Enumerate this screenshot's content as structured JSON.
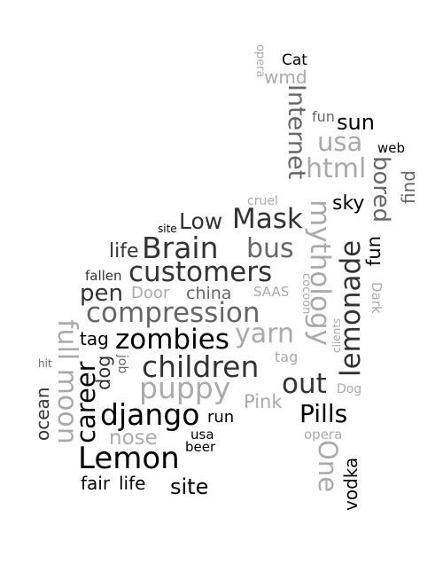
{
  "colors": {
    "background": "#ffffff",
    "black": "#000000",
    "dark": "#333333",
    "mid": "#666666",
    "light": "#aaaaaa"
  },
  "words": [
    {
      "text": "opera",
      "color": "#aaaaaa"
    },
    {
      "text": "Cat",
      "color": "#000000"
    },
    {
      "text": "wmd",
      "color": "#aaaaaa"
    },
    {
      "text": "Internet",
      "color": "#666666"
    },
    {
      "text": "fun",
      "color": "#666666"
    },
    {
      "text": "sun",
      "color": "#000000"
    },
    {
      "text": "usa",
      "color": "#aaaaaa"
    },
    {
      "text": "web",
      "color": "#000000"
    },
    {
      "text": "html",
      "color": "#aaaaaa"
    },
    {
      "text": "bored",
      "color": "#666666"
    },
    {
      "text": "find",
      "color": "#666666"
    },
    {
      "text": "cruel",
      "color": "#aaaaaa"
    },
    {
      "text": "sky",
      "color": "#000000"
    },
    {
      "text": "mythology",
      "color": "#aaaaaa"
    },
    {
      "text": "site",
      "color": "#000000"
    },
    {
      "text": "Low",
      "color": "#333333"
    },
    {
      "text": "Mask",
      "color": "#333333"
    },
    {
      "text": "lemonade",
      "color": "#333333"
    },
    {
      "text": "fun",
      "color": "#000000"
    },
    {
      "text": "life",
      "color": "#333333"
    },
    {
      "text": "Brain",
      "color": "#333333"
    },
    {
      "text": "bus",
      "color": "#666666"
    },
    {
      "text": "fallen",
      "color": "#333333"
    },
    {
      "text": "customers",
      "color": "#333333"
    },
    {
      "text": "Dark",
      "color": "#aaaaaa"
    },
    {
      "text": "pen",
      "color": "#333333"
    },
    {
      "text": "Door",
      "color": "#aaaaaa"
    },
    {
      "text": "china",
      "color": "#666666"
    },
    {
      "text": "SAAS",
      "color": "#aaaaaa"
    },
    {
      "text": "cocoon",
      "color": "#aaaaaa"
    },
    {
      "text": "compression",
      "color": "#666666"
    },
    {
      "text": "full moon",
      "color": "#aaaaaa"
    },
    {
      "text": "clients",
      "color": "#aaaaaa"
    },
    {
      "text": "tag",
      "color": "#000000"
    },
    {
      "text": "zombies",
      "color": "#000000"
    },
    {
      "text": "yarn",
      "color": "#aaaaaa"
    },
    {
      "text": "hit",
      "color": "#666666"
    },
    {
      "text": "ocean",
      "color": "#333333"
    },
    {
      "text": "job",
      "color": "#666666"
    },
    {
      "text": "dog",
      "color": "#333333"
    },
    {
      "text": "career",
      "color": "#000000"
    },
    {
      "text": "children",
      "color": "#333333"
    },
    {
      "text": "tag",
      "color": "#aaaaaa"
    },
    {
      "text": "puppy",
      "color": "#aaaaaa"
    },
    {
      "text": "out",
      "color": "#333333"
    },
    {
      "text": "Dog",
      "color": "#aaaaaa"
    },
    {
      "text": "Pink",
      "color": "#aaaaaa"
    },
    {
      "text": "django",
      "color": "#000000"
    },
    {
      "text": "run",
      "color": "#000000"
    },
    {
      "text": "Pills",
      "color": "#000000"
    },
    {
      "text": "opera",
      "color": "#aaaaaa"
    },
    {
      "text": "nose",
      "color": "#aaaaaa"
    },
    {
      "text": "usa",
      "color": "#000000"
    },
    {
      "text": "beer",
      "color": "#000000"
    },
    {
      "text": "One",
      "color": "#aaaaaa"
    },
    {
      "text": "Lemon",
      "color": "#000000"
    },
    {
      "text": "vodka",
      "color": "#000000"
    },
    {
      "text": "fair",
      "color": "#000000"
    },
    {
      "text": "life",
      "color": "#000000"
    },
    {
      "text": "site",
      "color": "#000000"
    }
  ]
}
